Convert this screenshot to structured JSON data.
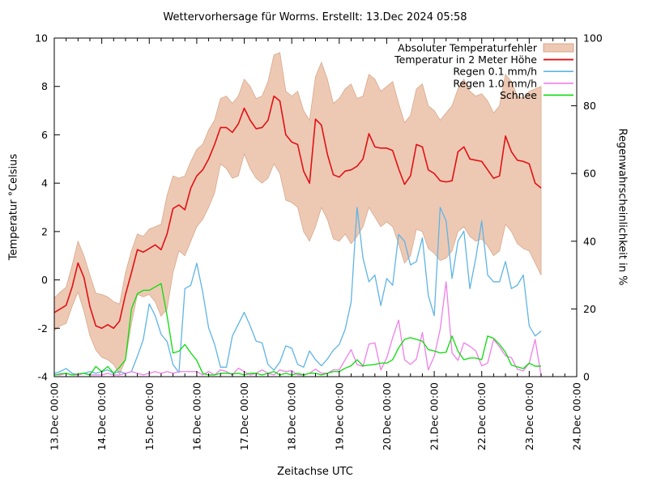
{
  "title": "Wettervorhersage für Worms. Erstellt: 13.Dec 2024 05:58",
  "chart_data": {
    "type": "line",
    "title": "Wettervorhersage für Worms. Erstellt: 13.Dec 2024 05:58",
    "xlabel": "Zeitachse UTC",
    "ylabel": "Temperatur °Celsius",
    "y2label": "Regenwahrscheinlichkeit in %",
    "ylim": [
      -4,
      10
    ],
    "y2lim": [
      0,
      100
    ],
    "yticks": [
      -4,
      -2,
      0,
      2,
      4,
      6,
      8,
      10
    ],
    "y2ticks": [
      0,
      20,
      40,
      60,
      80,
      100
    ],
    "grid": false,
    "legend_position": "top-right",
    "xtick_labels": [
      "13.Dec 00:00",
      "14.Dec 00:00",
      "15.Dec 00:00",
      "16.Dec 00:00",
      "17.Dec 00:00",
      "18.Dec 00:00",
      "19.Dec 00:00",
      "20.Dec 00:00",
      "21.Dec 00:00",
      "22.Dec 00:00",
      "23.Dec 00:00",
      "24.Dec 00:00"
    ],
    "x_total_hours": 264,
    "x_step_hours": 3,
    "series": [
      {
        "name": "Absoluter Temperaturfehler",
        "kind": "band",
        "axis": "y1",
        "color": "#edc9b4",
        "edge_color": "#d8a88b",
        "upper": [
          -0.75,
          -0.5,
          -0.3,
          0.6,
          1.6,
          1.0,
          0.2,
          -0.55,
          -0.6,
          -0.7,
          -0.9,
          -1.0,
          0.3,
          1.2,
          1.9,
          1.8,
          2.1,
          2.2,
          2.3,
          3.5,
          4.3,
          4.2,
          4.3,
          4.9,
          5.4,
          5.6,
          6.2,
          6.6,
          7.5,
          7.6,
          7.3,
          7.6,
          8.3,
          8.0,
          7.5,
          7.6,
          8.2,
          9.3,
          9.4,
          7.8,
          7.6,
          7.8,
          7.0,
          6.6,
          8.4,
          9.0,
          8.3,
          7.3,
          7.5,
          7.9,
          8.1,
          7.5,
          7.6,
          8.5,
          8.3,
          7.8,
          8.0,
          8.2,
          7.3,
          6.5,
          6.8,
          7.9,
          8.1,
          7.2,
          7.0,
          6.6,
          6.9,
          7.2,
          7.9,
          8.3,
          7.8,
          7.6,
          7.7,
          7.4,
          6.9,
          7.2,
          8.5,
          8.2,
          7.6,
          7.5,
          7.8,
          7.9,
          8.0
        ],
        "lower": [
          -2.1,
          -1.9,
          -1.8,
          -1.1,
          -0.5,
          -1.3,
          -2.3,
          -2.9,
          -3.2,
          -3.3,
          -3.5,
          -3.9,
          -3.3,
          -1.8,
          -0.6,
          -0.7,
          -0.6,
          -0.9,
          -1.5,
          -1.2,
          0.3,
          1.2,
          1.0,
          1.6,
          2.2,
          2.5,
          3.0,
          3.6,
          4.8,
          4.6,
          4.2,
          4.3,
          5.2,
          4.6,
          4.2,
          4.0,
          4.2,
          4.8,
          4.4,
          3.3,
          3.2,
          3.0,
          2.0,
          1.6,
          2.2,
          3.0,
          2.5,
          1.7,
          1.6,
          1.9,
          1.5,
          1.8,
          2.2,
          3.0,
          2.6,
          2.2,
          2.4,
          2.2,
          1.5,
          0.7,
          1.0,
          2.1,
          2.0,
          1.3,
          1.1,
          0.8,
          0.9,
          1.2,
          2.0,
          2.2,
          1.8,
          1.6,
          1.7,
          1.4,
          1.0,
          1.2,
          2.3,
          2.0,
          1.5,
          1.3,
          1.2,
          0.7,
          0.2
        ]
      },
      {
        "name": "Temperatur in 2 Meter Höhe",
        "kind": "line",
        "axis": "y1",
        "color": "#e31014",
        "width": 1.6,
        "values": [
          -1.35,
          -1.2,
          -1.05,
          -0.3,
          0.7,
          0.1,
          -1.1,
          -1.9,
          -2.0,
          -1.85,
          -2.0,
          -1.7,
          -0.6,
          0.3,
          1.25,
          1.15,
          1.3,
          1.45,
          1.25,
          1.9,
          2.95,
          3.1,
          2.9,
          3.8,
          4.3,
          4.55,
          5.0,
          5.6,
          6.3,
          6.3,
          6.1,
          6.45,
          7.1,
          6.6,
          6.25,
          6.3,
          6.6,
          7.6,
          7.4,
          6.0,
          5.7,
          5.6,
          4.5,
          4.0,
          6.65,
          6.4,
          5.2,
          4.35,
          4.25,
          4.5,
          4.55,
          4.7,
          5.0,
          6.05,
          5.5,
          5.45,
          5.45,
          5.35,
          4.6,
          3.95,
          4.3,
          5.6,
          5.5,
          4.55,
          4.4,
          4.1,
          4.05,
          4.1,
          5.3,
          5.5,
          5.0,
          4.95,
          4.9,
          4.55,
          4.2,
          4.3,
          5.95,
          5.3,
          4.95,
          4.9,
          4.8,
          4.0,
          3.8
        ]
      },
      {
        "name": "Regen 0.1 mm/h",
        "kind": "line",
        "axis": "y2",
        "color": "#5fb4e6",
        "width": 1.3,
        "values": [
          1,
          1.5,
          2.4,
          1,
          0.5,
          1,
          1.5,
          1,
          1.5,
          2,
          1,
          1.5,
          1,
          1.5,
          6,
          11,
          21.5,
          18,
          12.5,
          10.4,
          3.6,
          1.2,
          26,
          27,
          33.5,
          25,
          14.4,
          9.6,
          2.8,
          2.8,
          12,
          15.5,
          19,
          15,
          10.5,
          10,
          3.6,
          1.9,
          4.3,
          9.1,
          8.4,
          3.6,
          2.8,
          7.6,
          5,
          3.2,
          5.2,
          7.8,
          9.5,
          14,
          22,
          50,
          35,
          28,
          30,
          21,
          29,
          27,
          42,
          40,
          33,
          34,
          41,
          24,
          18,
          50,
          46,
          29,
          40,
          43,
          26,
          35,
          46,
          30,
          28,
          28,
          34,
          26,
          27,
          30,
          15,
          12,
          13.5
        ]
      },
      {
        "name": "Regen 1.0 mm/h",
        "kind": "line",
        "axis": "y2",
        "color": "#ef7fe8",
        "width": 1.3,
        "values": [
          0.5,
          0.5,
          1,
          0.5,
          0.5,
          1,
          0.5,
          0.5,
          0.5,
          1,
          0.5,
          0.5,
          1,
          1.5,
          1,
          0.5,
          1,
          1.5,
          1,
          1.5,
          1,
          1.5,
          1.5,
          1.5,
          1.5,
          0.5,
          1.5,
          0.5,
          2,
          1.5,
          0.5,
          2.5,
          1.5,
          0.5,
          1,
          2,
          1,
          0.5,
          2,
          1.5,
          1.8,
          0.5,
          0.5,
          1,
          2.2,
          1,
          1,
          2,
          2,
          5,
          8,
          3.6,
          3,
          9.6,
          10,
          2,
          5.5,
          11.5,
          16.7,
          5,
          3.6,
          5.2,
          13,
          2,
          6,
          14,
          28,
          7,
          4.8,
          10,
          9,
          7.6,
          3.2,
          4,
          11,
          8.8,
          6.2,
          5.6,
          2.2,
          1.7,
          4,
          11,
          0.3
        ]
      },
      {
        "name": "Schnee",
        "kind": "line",
        "axis": "y2",
        "color": "#0bdc0b",
        "width": 1.3,
        "values": [
          0.5,
          0.8,
          1,
          0.5,
          0.8,
          1,
          0.5,
          3,
          1.5,
          3,
          1,
          2.8,
          5,
          20,
          24.5,
          25.5,
          25.5,
          26.5,
          27.5,
          18,
          7,
          7.5,
          9.5,
          7,
          4.8,
          1,
          0.5,
          0.5,
          1,
          1,
          0.8,
          1,
          0.5,
          1,
          1,
          0.5,
          1,
          1.5,
          0.5,
          1,
          0.5,
          1,
          0.5,
          1,
          1,
          0.5,
          1,
          1.5,
          1.5,
          2.5,
          3.2,
          5,
          3.2,
          3.4,
          3.6,
          4,
          4,
          5,
          8.5,
          11,
          11.5,
          11,
          10.5,
          8,
          7.6,
          7,
          7.2,
          12,
          7.5,
          5,
          5.5,
          5.5,
          5,
          12,
          11.3,
          9.5,
          7.2,
          3.4,
          2.9,
          2.4,
          4,
          3.1,
          3.1
        ]
      }
    ]
  }
}
